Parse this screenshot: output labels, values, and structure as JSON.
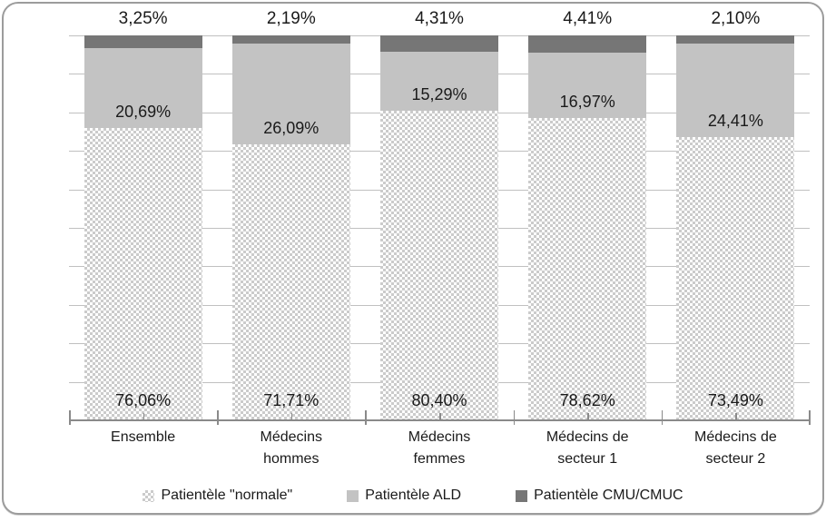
{
  "chart_data": {
    "type": "bar",
    "subtype": "stacked-100",
    "title": "",
    "categories": [
      "Ensemble",
      "Médecins hommes",
      "Médecins femmes",
      "Médecins de secteur 1",
      "Médecins de secteur 2"
    ],
    "series": [
      {
        "name": "Patientèle \"normale\"",
        "values": [
          76.06,
          71.71,
          80.4,
          78.62,
          73.49
        ],
        "fill": "checker-pattern",
        "color": "#cbcbcb",
        "label_position": "inside-base"
      },
      {
        "name": "Patientèle ALD",
        "values": [
          20.69,
          26.09,
          15.29,
          16.97,
          24.41
        ],
        "fill": "solid",
        "color": "#c3c3c3",
        "label_position": "inside-base"
      },
      {
        "name": "Patientèle CMU/CMUC",
        "values": [
          3.25,
          2.19,
          4.31,
          4.41,
          2.1
        ],
        "fill": "solid",
        "color": "#767676",
        "label_position": "above-bar"
      }
    ],
    "value_label_format": "0,00%",
    "ylim": [
      0,
      100
    ],
    "gridline_interval": 10,
    "grid": true,
    "legend_position": "bottom"
  },
  "colors": {
    "gridline": "#c0c0c0",
    "axis": "#8a8a8a",
    "frame_border": "#9c9c9c",
    "label_text": "#1a1a1a",
    "background": "#ffffff"
  }
}
